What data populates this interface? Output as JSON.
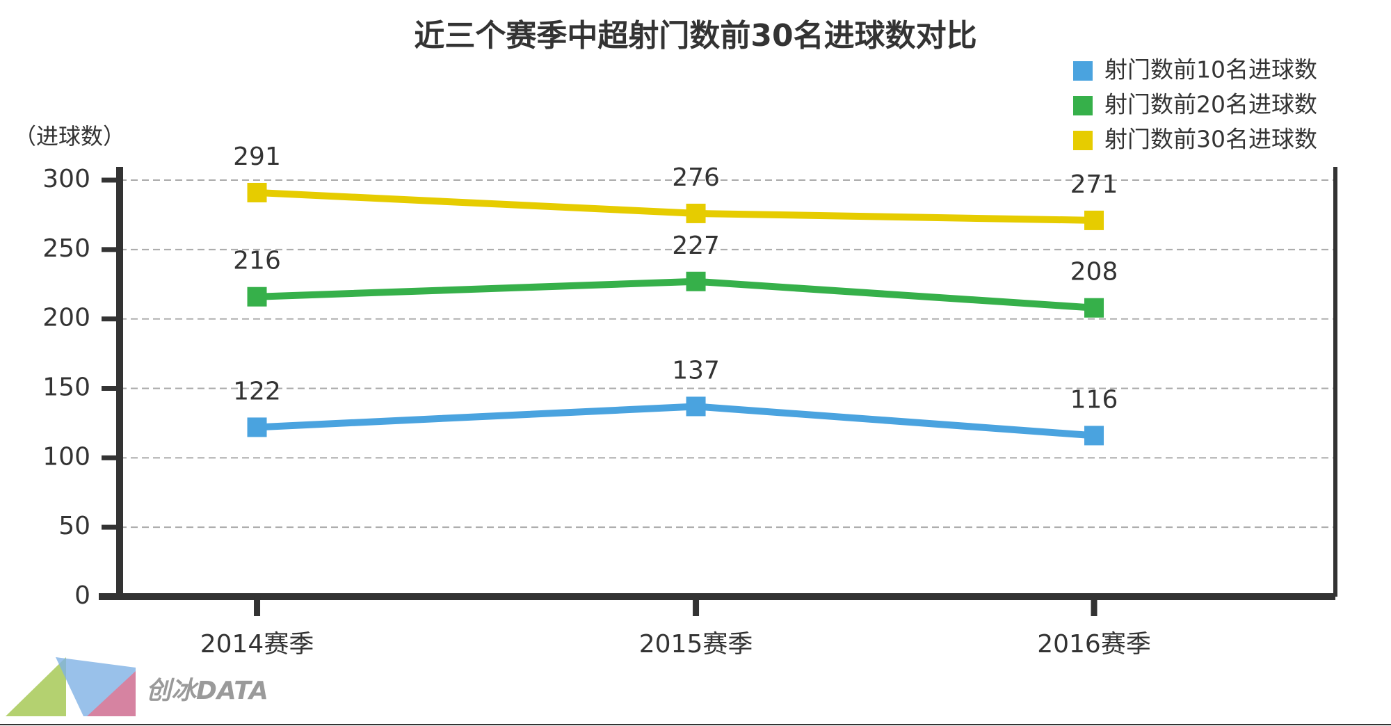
{
  "chart_data": {
    "type": "line",
    "title": "近三个赛季中超射门数前30名进球数对比",
    "y_label": "（进球数）",
    "categories": [
      "2014赛季",
      "2015赛季",
      "2016赛季"
    ],
    "series": [
      {
        "name": "射门数前10名进球数",
        "color": "#4aa3df",
        "values": [
          122,
          137,
          116
        ]
      },
      {
        "name": "射门数前20名进球数",
        "color": "#36b04a",
        "values": [
          216,
          227,
          208
        ]
      },
      {
        "name": "射门数前30名进球数",
        "color": "#e6cc00",
        "values": [
          291,
          276,
          271
        ]
      }
    ],
    "ylim": [
      0,
      300
    ],
    "yticks": [
      0,
      50,
      100,
      150,
      200,
      250,
      300
    ],
    "grid": true,
    "legend": "top-right",
    "watermark": "创冰DATA"
  }
}
